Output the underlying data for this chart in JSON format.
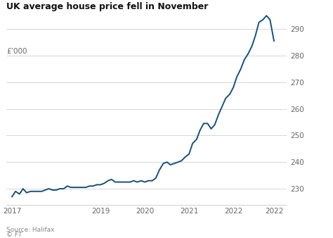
{
  "title": "UK average house price fell in November",
  "ylabel": "£’000",
  "source_line1": "Source: Halifax",
  "source_line2": "© FT",
  "line_color": "#1a4f7a",
  "background_color": "#ffffff",
  "grid_color": "#d0d0d0",
  "title_color": "#111111",
  "label_color": "#666666",
  "source_color": "#888888",
  "ylim": [
    224,
    300
  ],
  "yticks": [
    230,
    240,
    250,
    260,
    270,
    280,
    290
  ],
  "xlim_left": 2016.88,
  "xlim_right": 2023.2,
  "xtick_positions": [
    2017,
    2019,
    2020,
    2021,
    2022,
    2022.92
  ],
  "xtick_labels": [
    "2017",
    "2019",
    "2020",
    "2021",
    "2022",
    "2022"
  ],
  "data": [
    [
      2017.0,
      227.0
    ],
    [
      2017.08,
      229.0
    ],
    [
      2017.17,
      228.0
    ],
    [
      2017.25,
      230.0
    ],
    [
      2017.33,
      228.5
    ],
    [
      2017.42,
      229.0
    ],
    [
      2017.5,
      229.0
    ],
    [
      2017.58,
      229.0
    ],
    [
      2017.67,
      229.0
    ],
    [
      2017.75,
      229.5
    ],
    [
      2017.83,
      230.0
    ],
    [
      2017.92,
      229.5
    ],
    [
      2018.0,
      229.5
    ],
    [
      2018.08,
      230.0
    ],
    [
      2018.17,
      230.0
    ],
    [
      2018.25,
      231.0
    ],
    [
      2018.33,
      230.5
    ],
    [
      2018.42,
      230.5
    ],
    [
      2018.5,
      230.5
    ],
    [
      2018.58,
      230.5
    ],
    [
      2018.67,
      230.5
    ],
    [
      2018.75,
      231.0
    ],
    [
      2018.83,
      231.0
    ],
    [
      2018.92,
      231.5
    ],
    [
      2019.0,
      231.5
    ],
    [
      2019.08,
      232.0
    ],
    [
      2019.17,
      233.0
    ],
    [
      2019.25,
      233.5
    ],
    [
      2019.33,
      232.5
    ],
    [
      2019.42,
      232.5
    ],
    [
      2019.5,
      232.5
    ],
    [
      2019.58,
      232.5
    ],
    [
      2019.67,
      232.5
    ],
    [
      2019.75,
      233.0
    ],
    [
      2019.83,
      232.5
    ],
    [
      2019.92,
      233.0
    ],
    [
      2020.0,
      232.5
    ],
    [
      2020.08,
      233.0
    ],
    [
      2020.17,
      233.0
    ],
    [
      2020.25,
      234.0
    ],
    [
      2020.33,
      237.0
    ],
    [
      2020.42,
      239.5
    ],
    [
      2020.5,
      240.0
    ],
    [
      2020.58,
      239.0
    ],
    [
      2020.67,
      239.5
    ],
    [
      2020.75,
      240.0
    ],
    [
      2020.83,
      240.5
    ],
    [
      2020.92,
      242.0
    ],
    [
      2021.0,
      243.0
    ],
    [
      2021.08,
      247.0
    ],
    [
      2021.17,
      248.5
    ],
    [
      2021.25,
      252.0
    ],
    [
      2021.33,
      254.5
    ],
    [
      2021.42,
      254.5
    ],
    [
      2021.5,
      252.5
    ],
    [
      2021.58,
      254.0
    ],
    [
      2021.67,
      258.0
    ],
    [
      2021.75,
      261.0
    ],
    [
      2021.83,
      264.0
    ],
    [
      2021.92,
      265.5
    ],
    [
      2022.0,
      268.0
    ],
    [
      2022.08,
      272.0
    ],
    [
      2022.17,
      275.0
    ],
    [
      2022.25,
      278.5
    ],
    [
      2022.33,
      280.5
    ],
    [
      2022.42,
      283.5
    ],
    [
      2022.5,
      287.5
    ],
    [
      2022.58,
      292.5
    ],
    [
      2022.67,
      293.5
    ],
    [
      2022.75,
      295.0
    ],
    [
      2022.83,
      293.5
    ],
    [
      2022.92,
      285.5
    ]
  ]
}
